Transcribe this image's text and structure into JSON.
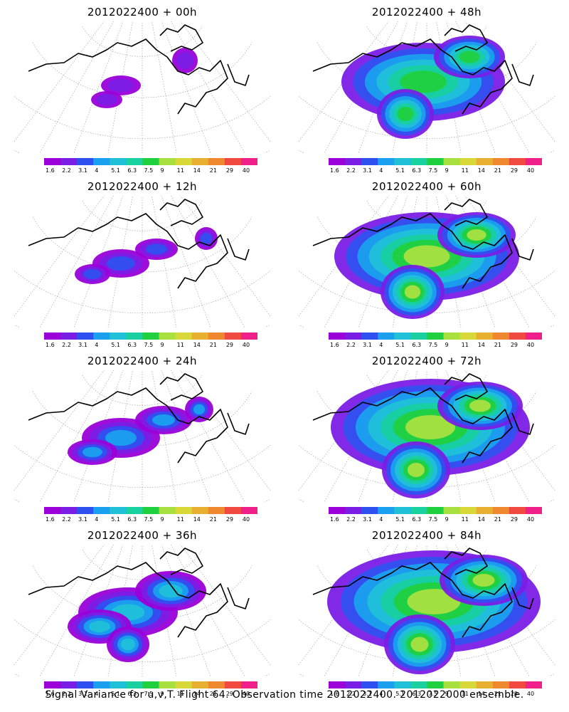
{
  "panels": [
    {
      "title": "2012022400 + 00h",
      "level": 0
    },
    {
      "title": "2012022400 + 48h",
      "level": 4
    },
    {
      "title": "2012022400 + 12h",
      "level": 1
    },
    {
      "title": "2012022400 + 60h",
      "level": 5
    },
    {
      "title": "2012022400 + 24h",
      "level": 2
    },
    {
      "title": "2012022400 + 72h",
      "level": 6
    },
    {
      "title": "2012022400 + 36h",
      "level": 3
    },
    {
      "title": "2012022400 + 84h",
      "level": 7
    }
  ],
  "colorbar": {
    "labels": [
      "1.6",
      "2.2",
      "3.1",
      "4",
      "5.1",
      "6.3",
      "7.5",
      "9",
      "11",
      "14",
      "21",
      "29",
      "40"
    ],
    "colors": [
      "#9a00d8",
      "#7a1ee6",
      "#2f50f0",
      "#1aa0ee",
      "#20c0d8",
      "#18d0a0",
      "#20d040",
      "#a8e040",
      "#d8d838",
      "#e8b030",
      "#f08830",
      "#f04a40",
      "#f0208a"
    ]
  },
  "footer": "Signal Variance for u,v,T. Flight 64. Observation time 2012022400. 2012022000 ensemble."
}
